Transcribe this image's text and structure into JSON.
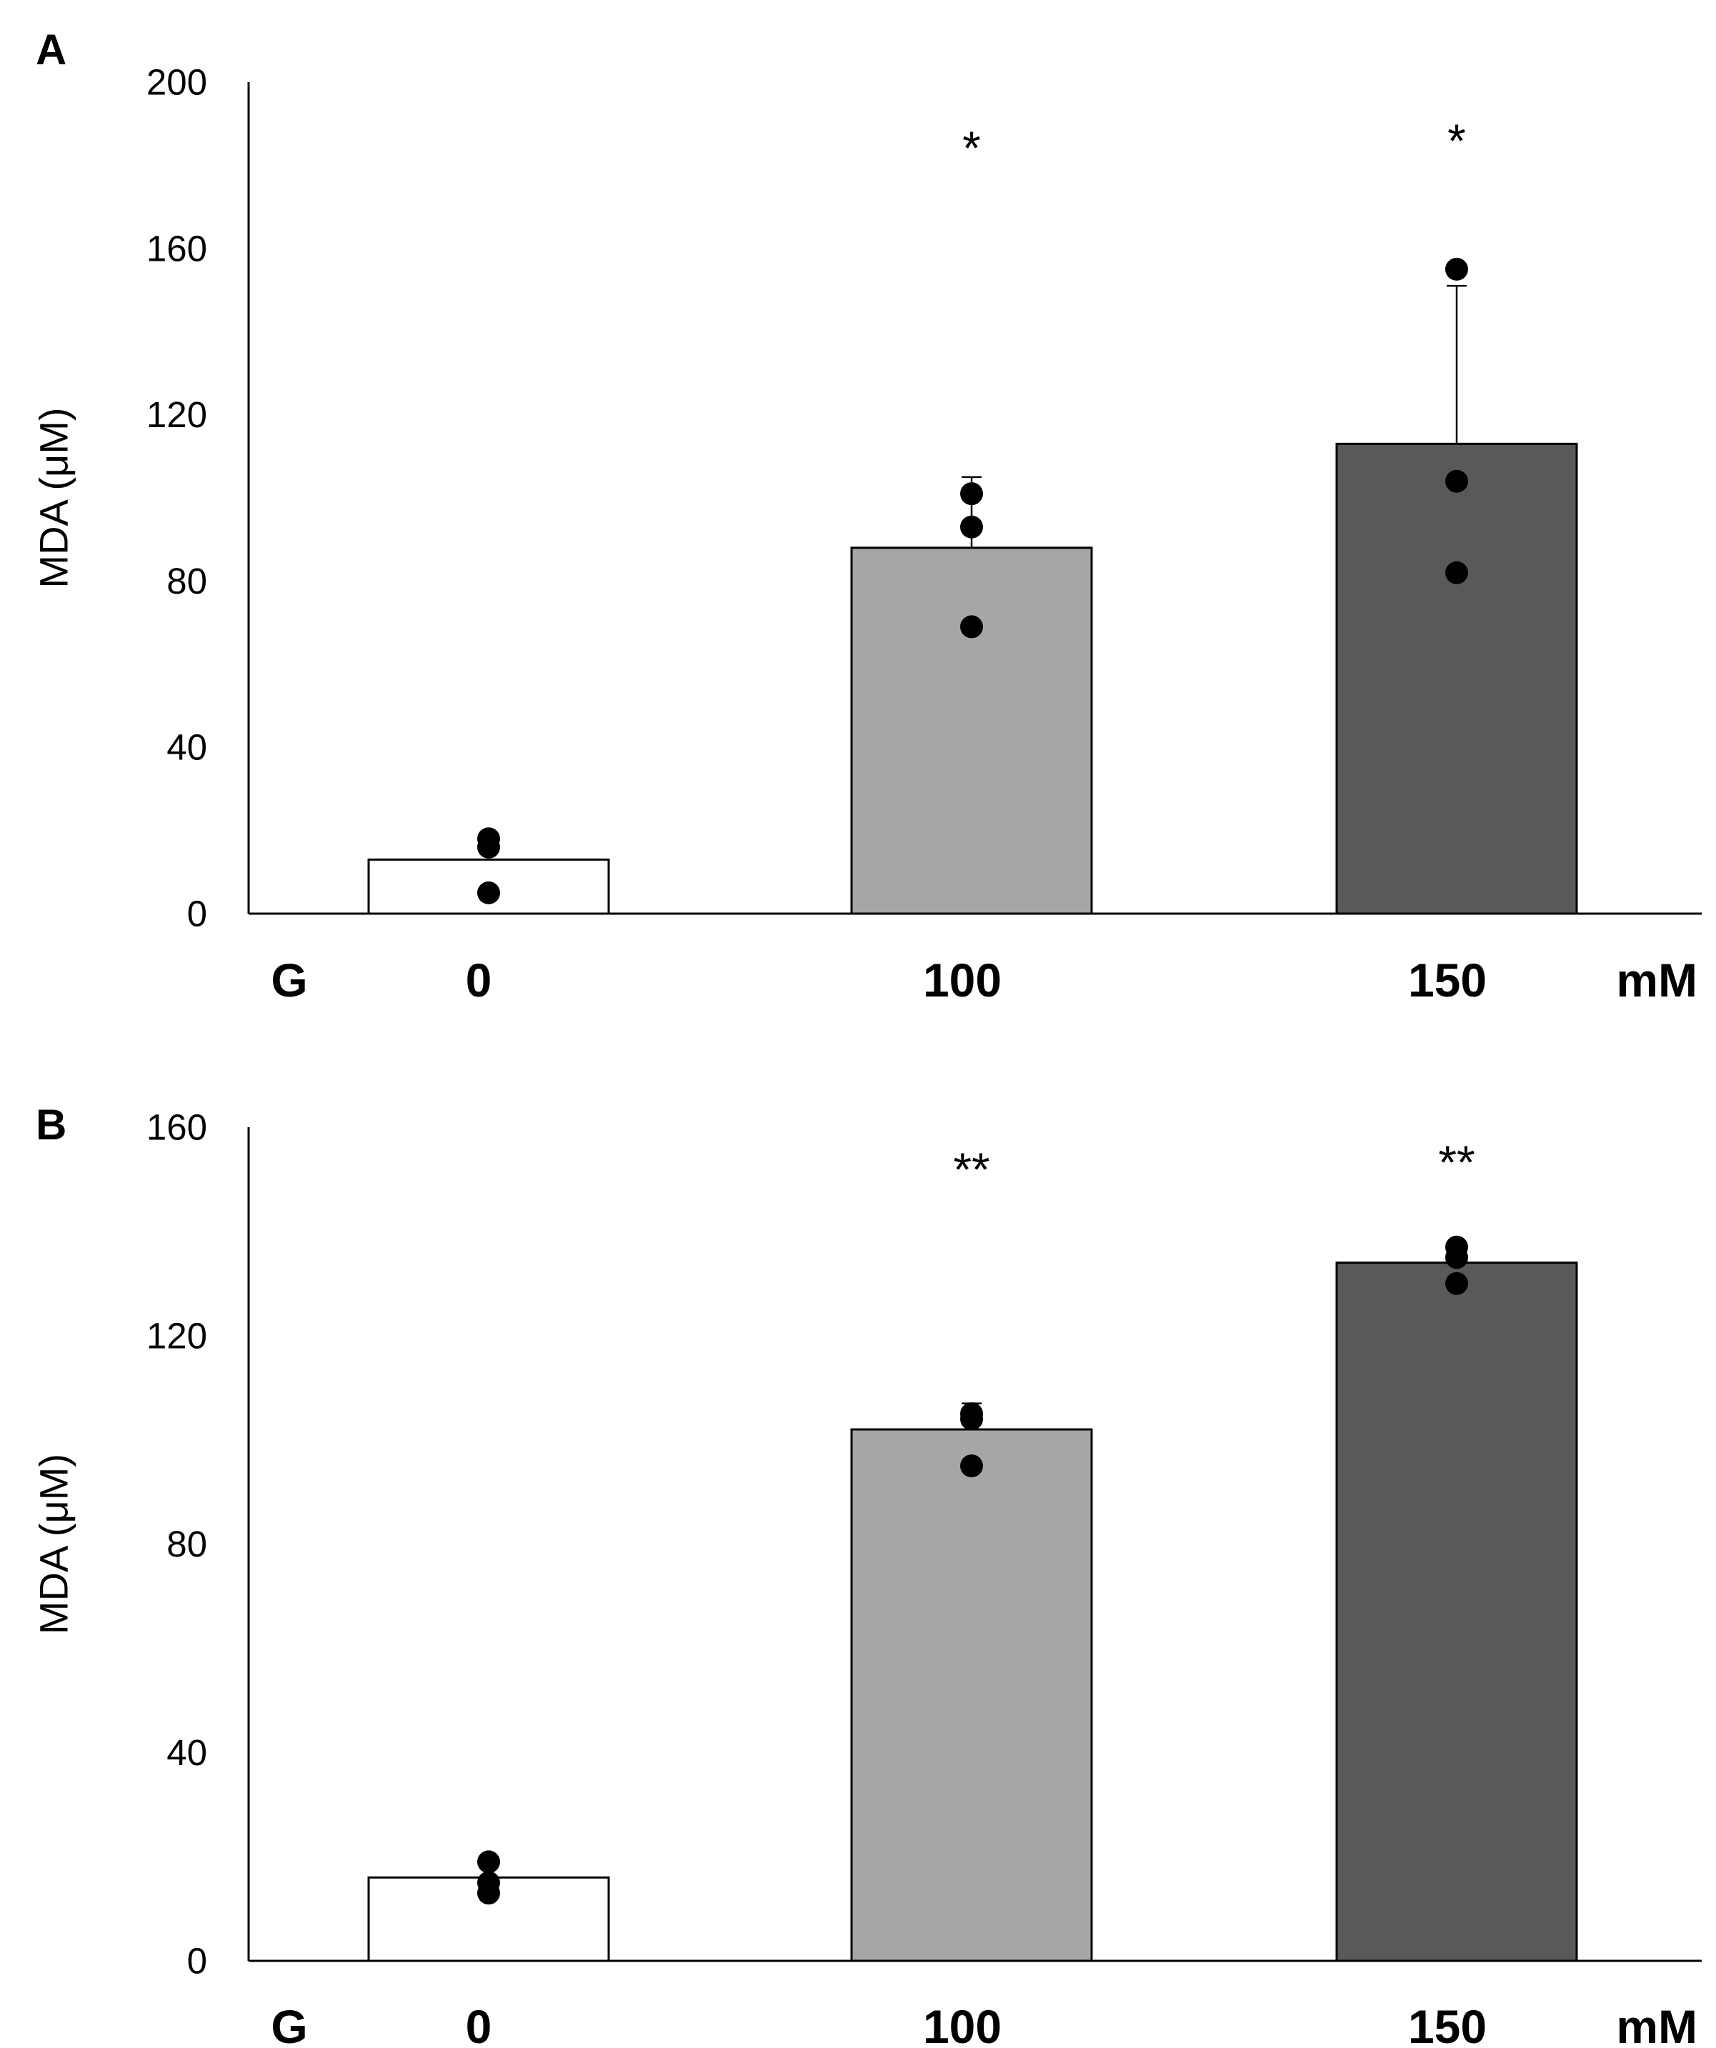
{
  "chart_data": [
    {
      "panel": "A",
      "type": "bar",
      "group_label": "G",
      "unit_label": "mM",
      "ylabel": "MDA (μM)",
      "ylim": [
        0,
        200
      ],
      "yticks": [
        0,
        40,
        80,
        120,
        160,
        200
      ],
      "categories": [
        "0",
        "100",
        "150"
      ],
      "values": [
        13,
        88,
        113
      ],
      "error_upper": [
        null,
        105,
        151
      ],
      "points": [
        [
          18,
          16,
          5
        ],
        [
          101,
          93,
          69
        ],
        [
          155,
          104,
          82
        ]
      ],
      "significance": [
        "",
        "*",
        "*"
      ],
      "colors": [
        "#ffffff",
        "#a6a6a6",
        "#595959"
      ]
    },
    {
      "panel": "B",
      "type": "bar",
      "group_label": "G",
      "unit_label": "mM",
      "ylabel": "MDA (μM)",
      "ylim": [
        0,
        160
      ],
      "yticks": [
        0,
        40,
        80,
        120,
        160
      ],
      "categories": [
        "0",
        "100",
        "150"
      ],
      "values": [
        16,
        102,
        134
      ],
      "error_upper": [
        null,
        107,
        null
      ],
      "points": [
        [
          19,
          15,
          13
        ],
        [
          105,
          104,
          95
        ],
        [
          137,
          135,
          130
        ]
      ],
      "significance": [
        "",
        "**",
        "**"
      ],
      "colors": [
        "#ffffff",
        "#a6a6a6",
        "#595959"
      ]
    }
  ]
}
